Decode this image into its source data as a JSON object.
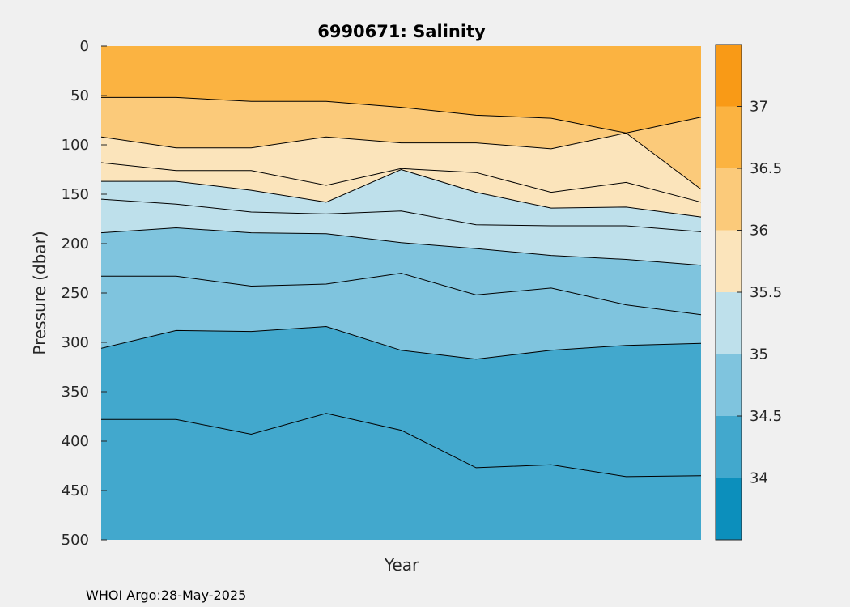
{
  "chart_data": {
    "type": "contour",
    "title": "6990671:  Salinity",
    "xlabel": "Year",
    "ylabel": "Pressure (dbar)",
    "y_reversed": true,
    "ylim": [
      0,
      500
    ],
    "yticks": [
      "0",
      "50",
      "100",
      "150",
      "200",
      "250",
      "300",
      "350",
      "400",
      "450",
      "500"
    ],
    "colorbar": {
      "range": [
        33.5,
        37.5
      ],
      "ticks": [
        "34",
        "34.5",
        "35",
        "35.5",
        "36",
        "36.5",
        "37"
      ],
      "band_colors": [
        "#0c8fbc",
        "#42a8cd",
        "#7fc4de",
        "#bee0eb",
        "#fbe4bb",
        "#fbca7a",
        "#fbb341",
        "#f99a16"
      ]
    },
    "top_fill_color": "#fbb341",
    "contours": [
      {
        "level": 36.5,
        "depths": [
          52,
          52,
          56,
          56,
          62,
          70,
          73,
          88,
          72
        ]
      },
      {
        "level": 36.0,
        "depths": [
          92,
          103,
          103,
          92,
          98,
          98,
          104,
          88,
          145
        ]
      },
      {
        "level": 36.0,
        "depths": [
          118,
          126,
          126,
          141,
          124,
          128,
          148,
          138,
          158
        ]
      },
      {
        "level": 35.5,
        "depths": [
          137,
          137,
          146,
          158,
          125,
          148,
          164,
          163,
          173
        ]
      },
      {
        "level": 35.5,
        "depths": [
          155,
          160,
          168,
          170,
          167,
          181,
          182,
          182,
          188
        ]
      },
      {
        "level": 35.0,
        "depths": [
          189,
          184,
          189,
          190,
          199,
          205,
          212,
          216,
          222
        ]
      },
      {
        "level": 35.0,
        "depths": [
          233,
          233,
          243,
          241,
          230,
          252,
          245,
          262,
          272
        ]
      },
      {
        "level": 34.5,
        "depths": [
          306,
          288,
          289,
          284,
          308,
          317,
          308,
          303,
          301
        ]
      },
      {
        "level": 34.5,
        "depths": [
          378,
          378,
          393,
          372,
          389,
          427,
          424,
          436,
          435
        ]
      }
    ]
  },
  "footer": "WHOI Argo:28-May-2025"
}
